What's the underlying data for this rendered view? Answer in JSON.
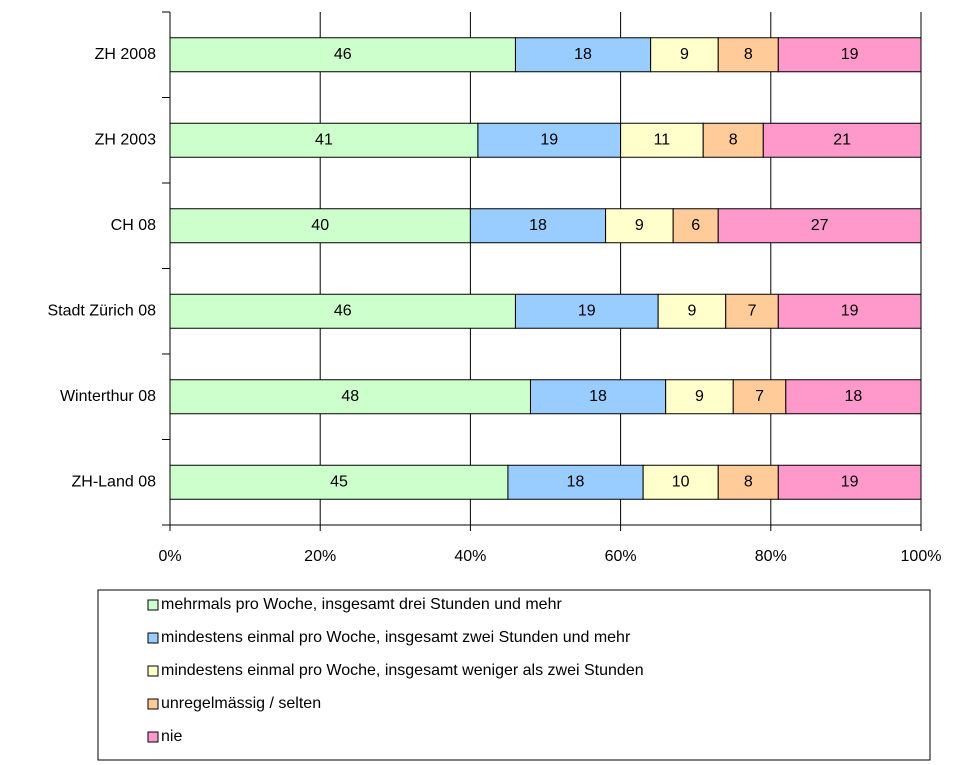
{
  "chart_data": {
    "type": "stacked-bar-horizontal",
    "categories": [
      "ZH 2008",
      "ZH 2003",
      "CH 08",
      "Stadt Zürich 08",
      "Winterthur 08",
      "ZH-Land 08"
    ],
    "series": [
      {
        "name": "mehrmals pro Woche, insgesamt drei Stunden und mehr",
        "color": "#ccffcc",
        "values": [
          46,
          41,
          40,
          46,
          48,
          45
        ]
      },
      {
        "name": "mindestens einmal pro Woche, insgesamt zwei Stunden und mehr",
        "color": "#99ccff",
        "values": [
          18,
          19,
          18,
          19,
          18,
          18
        ]
      },
      {
        "name": "mindestens einmal pro Woche, insgesamt weniger als zwei Stunden",
        "color": "#ffffcc",
        "values": [
          9,
          11,
          9,
          9,
          9,
          10
        ]
      },
      {
        "name": "unregelmässig / selten",
        "color": "#ffcc99",
        "values": [
          8,
          8,
          6,
          7,
          7,
          8
        ]
      },
      {
        "name": "nie",
        "color": "#ff99cc",
        "values": [
          19,
          21,
          27,
          19,
          18,
          19
        ]
      }
    ],
    "xlim": [
      0,
      100
    ],
    "xticks": [
      {
        "value": 0,
        "label": "0%"
      },
      {
        "value": 20,
        "label": "20%"
      },
      {
        "value": 40,
        "label": "40%"
      },
      {
        "value": 60,
        "label": "60%"
      },
      {
        "value": 80,
        "label": "80%"
      },
      {
        "value": 100,
        "label": "100%"
      }
    ],
    "grid": true
  }
}
